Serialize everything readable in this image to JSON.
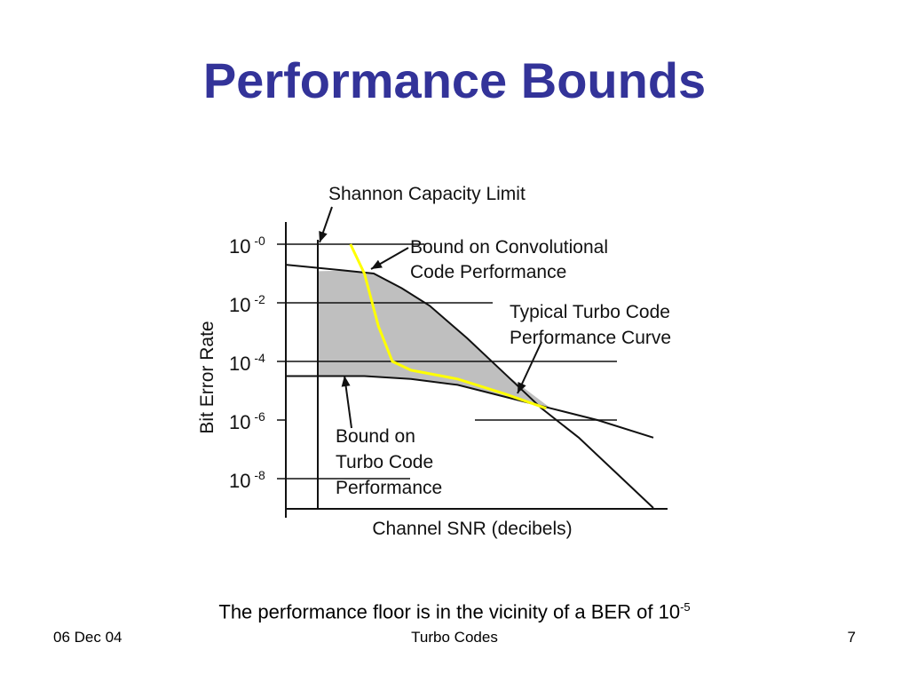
{
  "slide": {
    "title": "Performance Bounds",
    "caption_text": "The performance floor is in the vicinity of a BER of 10",
    "caption_exponent": "-5"
  },
  "footer": {
    "date": "06 Dec 04",
    "topic": "Turbo Codes",
    "page_number": "7"
  },
  "colors": {
    "title": "#333399",
    "shaded_region": "#bfbfbf",
    "turbo_curve_highlight": "#ffff00"
  },
  "chart_data": {
    "type": "line",
    "xlabel": "Channel SNR (decibels)",
    "ylabel": "Bit Error Rate",
    "yscale": "log",
    "ylim": [
      1e-09,
      1
    ],
    "yticks": [
      {
        "base": "10",
        "exp": "-0",
        "value": 0
      },
      {
        "base": "10",
        "exp": "-2",
        "value": -2
      },
      {
        "base": "10",
        "exp": "-4",
        "value": -4
      },
      {
        "base": "10",
        "exp": "-6",
        "value": -6
      },
      {
        "base": "10",
        "exp": "-8",
        "value": -8
      }
    ],
    "grid": true,
    "annotations": [
      {
        "id": "shannon",
        "text_lines": [
          "Shannon Capacity Limit"
        ]
      },
      {
        "id": "conv",
        "text_lines": [
          "Bound on Convolutional",
          "Code Performance"
        ]
      },
      {
        "id": "turbo_curve",
        "text_lines": [
          "Typical Turbo Code",
          "Performance Curve"
        ]
      },
      {
        "id": "turbo_bound",
        "text_lines": [
          "Bound on",
          "Turbo Code",
          "Performance"
        ]
      }
    ],
    "series": [
      {
        "name": "Bound on Convolutional Code Performance",
        "x": [
          0.0,
          0.3,
          0.6,
          0.9,
          1.2,
          1.6,
          2.0,
          2.4,
          2.8,
          3.2,
          3.6
        ],
        "y": [
          -0.7,
          -0.9,
          -1.0,
          -1.5,
          -2.1,
          -3.2,
          -4.4,
          -5.6,
          -6.6,
          -7.8,
          -9.0
        ]
      },
      {
        "name": "Bound on Turbo Code Performance",
        "x": [
          0.0,
          0.5,
          1.0,
          1.5,
          2.0,
          2.5,
          3.0,
          3.6
        ],
        "y": [
          -4.5,
          -4.5,
          -4.6,
          -4.8,
          -5.2,
          -5.6,
          -6.0,
          -6.6
        ]
      },
      {
        "name": "Typical Turbo Code Performance Curve",
        "x": [
          0.35,
          0.5,
          0.65,
          0.8,
          1.0,
          1.5,
          2.0,
          2.45
        ],
        "y": [
          0.0,
          -1.0,
          -2.8,
          -4.0,
          -4.3,
          -4.6,
          -5.1,
          -5.6
        ]
      }
    ]
  }
}
